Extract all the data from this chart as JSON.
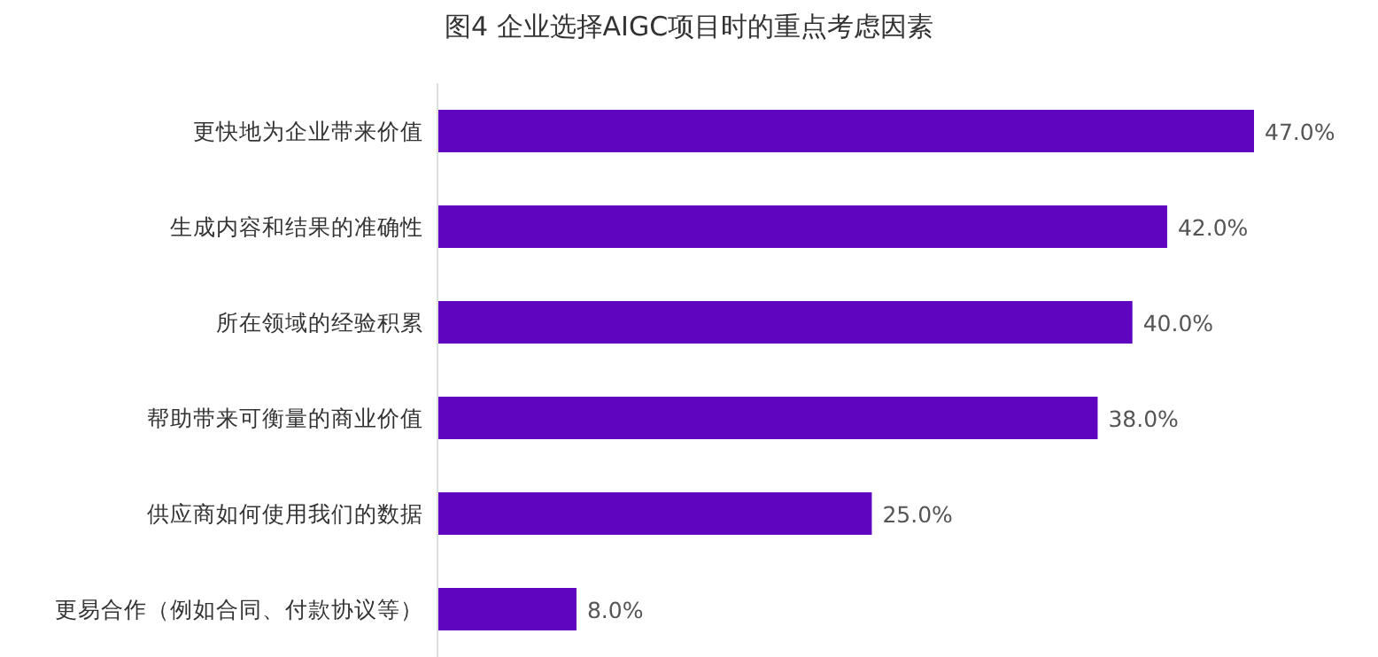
{
  "chart_data": {
    "type": "bar",
    "orientation": "horizontal",
    "title": "图4 企业选择AIGC项目时的重点考虑因素",
    "categories": [
      "更快地为企业带来价值",
      "生成内容和结果的准确性",
      "所在领域的经验积累",
      "帮助带来可衡量的商业价值",
      "供应商如何使用我们的数据",
      "更易合作（例如合同、付款协议等）"
    ],
    "values": [
      47,
      42,
      40,
      38,
      25,
      8
    ],
    "value_labels": [
      "47.0%",
      "42.0%",
      "40.0%",
      "38.0%",
      "25.0%",
      "8.0%"
    ],
    "color": "#5f05bf"
  }
}
